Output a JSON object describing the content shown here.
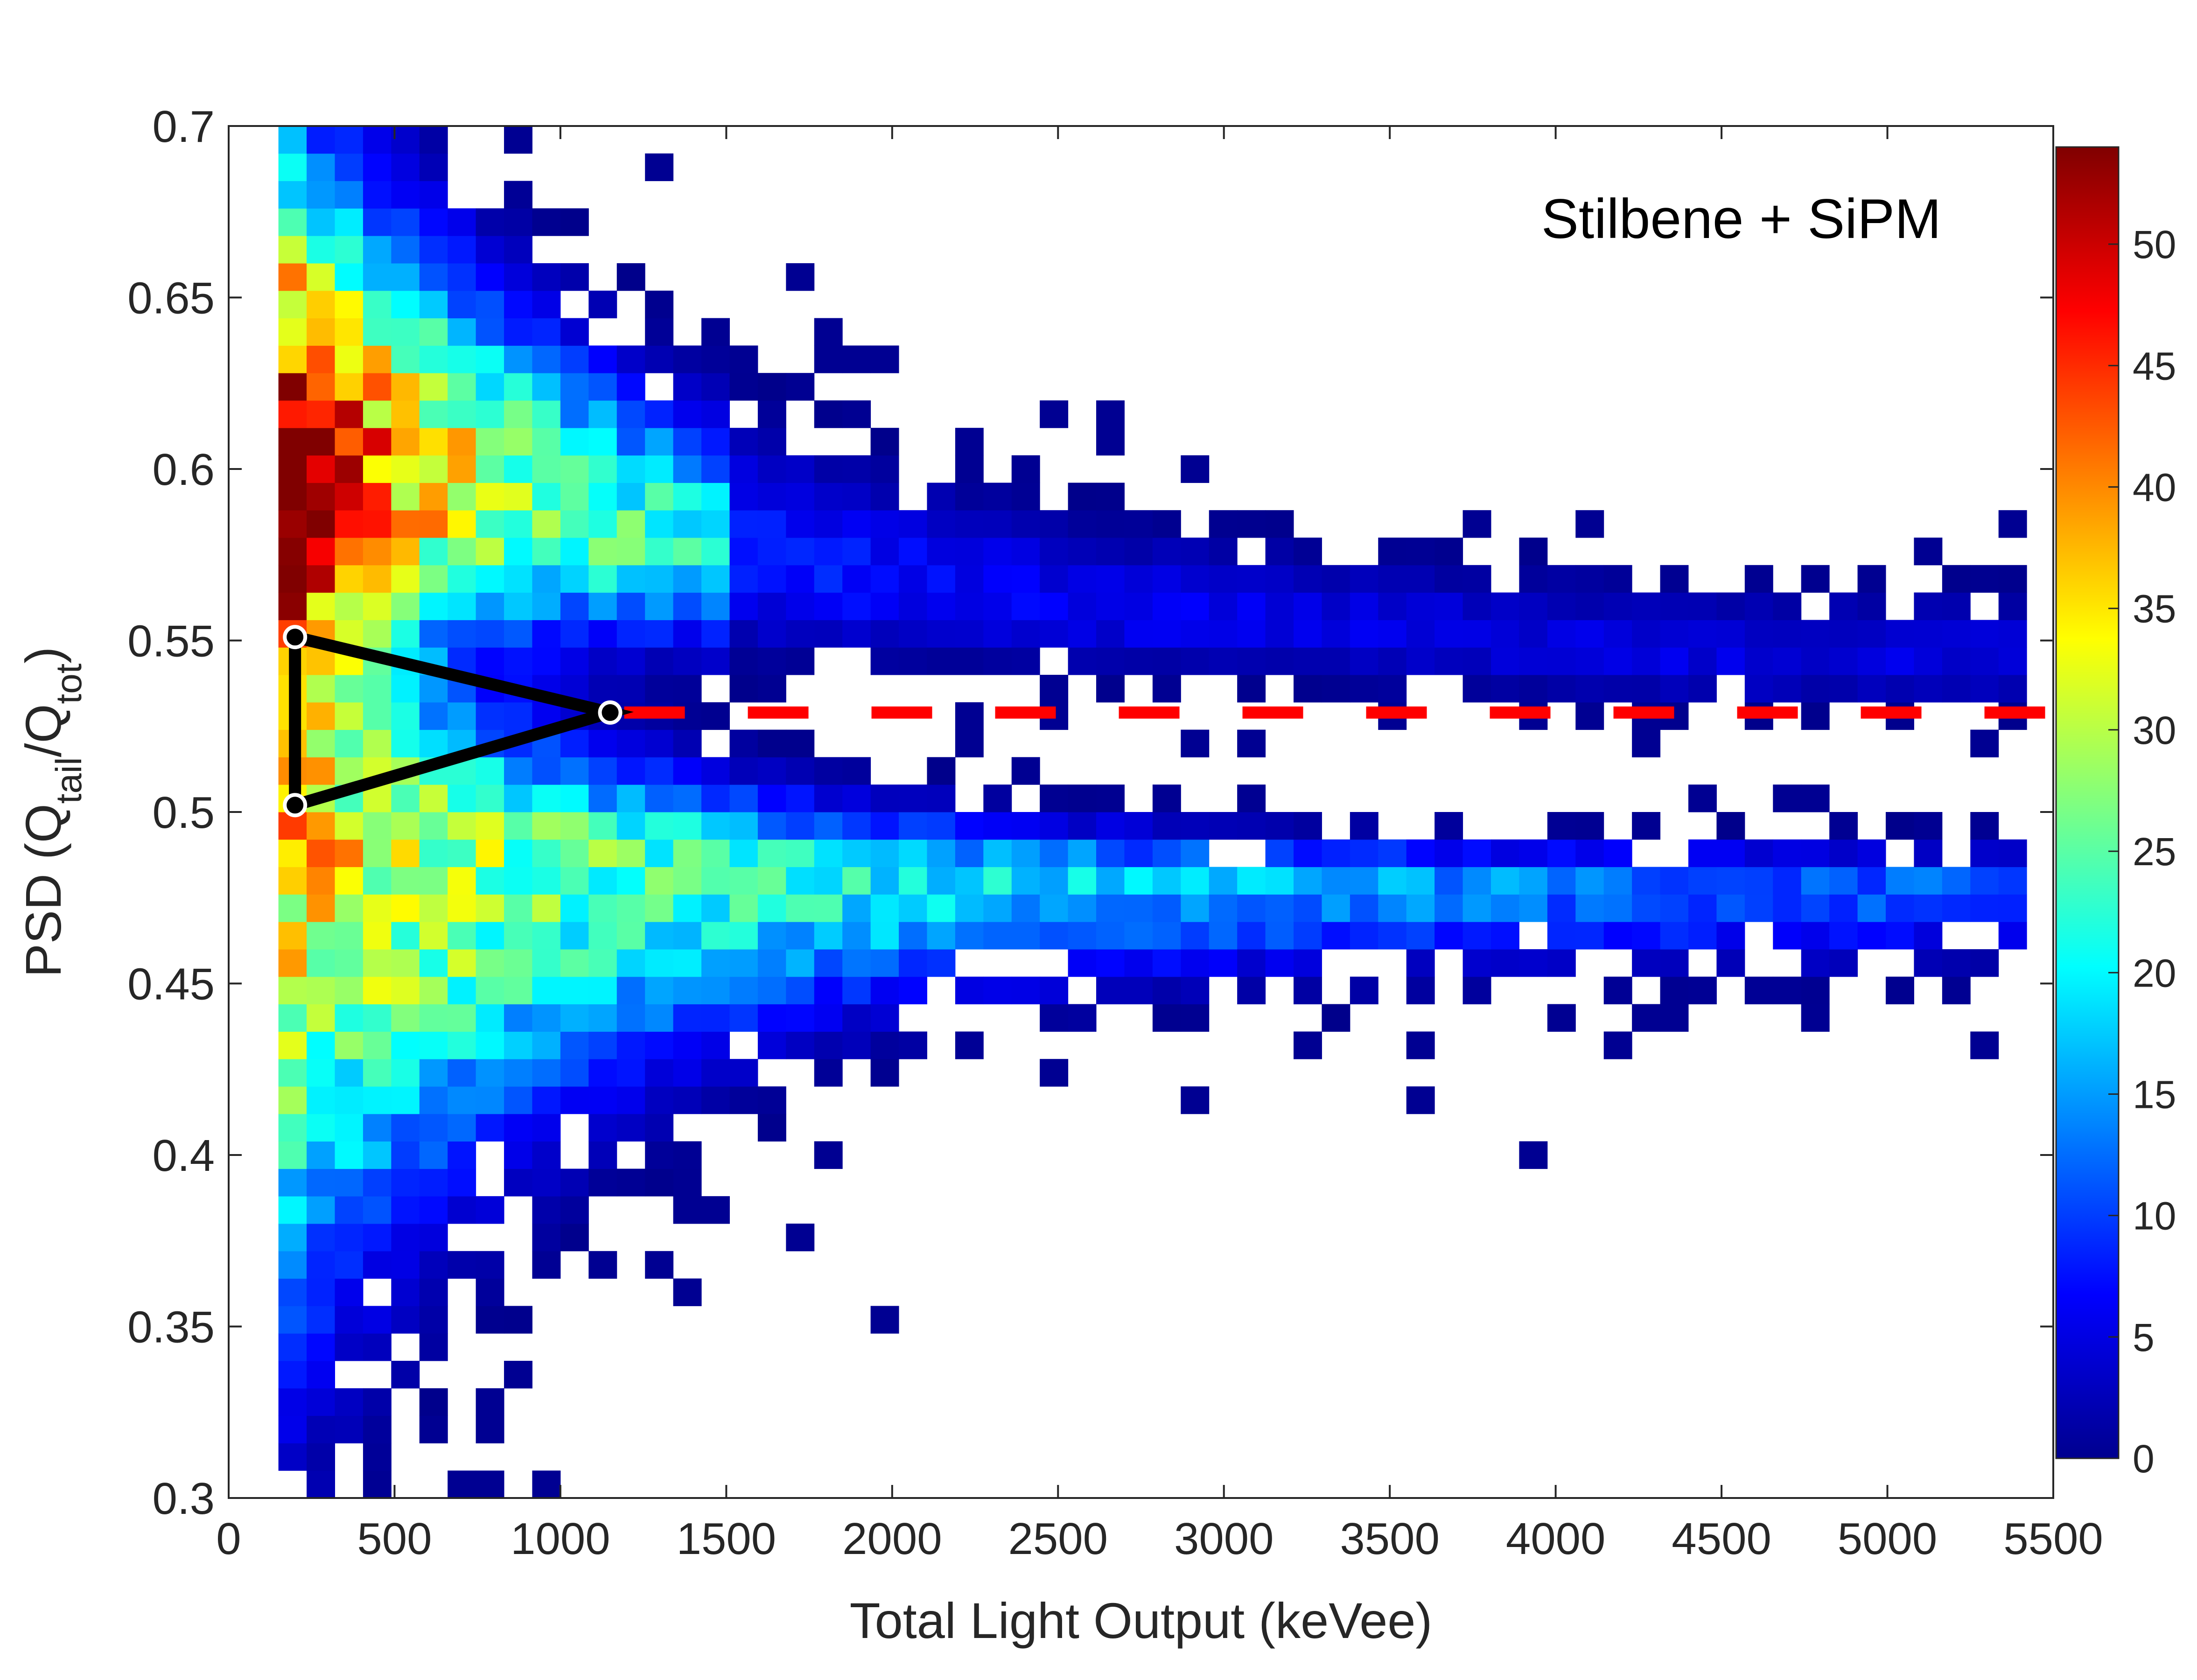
{
  "chart_data": {
    "type": "heatmap",
    "title": "",
    "annotation": "Stilbene + SiPM",
    "xlabel": "Total Light Output (keVee)",
    "ylabel": {
      "prefix": "PSD (Q",
      "sub1": "tail",
      "mid": "/Q",
      "sub2": "tot",
      "suffix": ")"
    },
    "xlim": [
      0,
      5500
    ],
    "ylim": [
      0.3,
      0.7
    ],
    "xticks": [
      "0",
      "500",
      "1000",
      "1500",
      "2000",
      "2500",
      "3000",
      "3500",
      "4000",
      "4500",
      "5000",
      "5500"
    ],
    "yticks": [
      "0.3",
      "0.35",
      "0.4",
      "0.45",
      "0.5",
      "0.55",
      "0.6",
      "0.65",
      "0.7"
    ],
    "colorbar": {
      "range": [
        0,
        54
      ],
      "ticks": [
        "0",
        "5",
        "10",
        "15",
        "20",
        "25",
        "30",
        "35",
        "40",
        "45",
        "50"
      ],
      "colormap": "jet"
    },
    "grid": false,
    "bin_size": {
      "x": 85,
      "y": 0.008
    },
    "neutron_band": {
      "description": "upper branch",
      "ridge": [
        [
          150,
          0.6
        ],
        [
          650,
          0.595
        ],
        [
          1500,
          0.575
        ],
        [
          2500,
          0.56
        ],
        [
          3500,
          0.552
        ],
        [
          4500,
          0.545
        ]
      ],
      "peak_counts": 53
    },
    "gamma_band": {
      "description": "lower branch",
      "ridge": [
        [
          150,
          0.49
        ],
        [
          650,
          0.485
        ],
        [
          1500,
          0.482
        ],
        [
          2500,
          0.48
        ],
        [
          3500,
          0.479
        ],
        [
          4500,
          0.478
        ]
      ],
      "peak_counts": 35
    },
    "separation_line": {
      "y": 0.529,
      "x_start": 1150,
      "x_end": 5500,
      "color": "#ff0000",
      "style": "dashed"
    },
    "triangle": {
      "vertices": [
        [
          200,
          0.551
        ],
        [
          200,
          0.502
        ],
        [
          1150,
          0.529
        ]
      ],
      "color": "#000000"
    }
  }
}
